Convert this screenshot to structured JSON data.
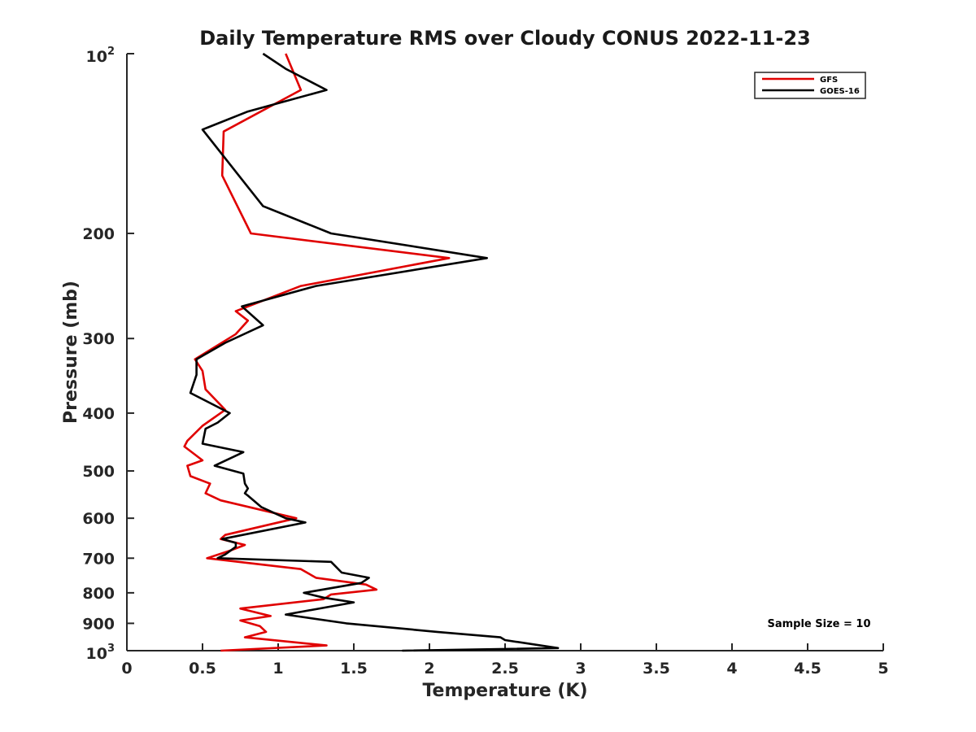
{
  "chart_data": {
    "type": "line",
    "title": "Daily Temperature RMS over Cloudy CONUS 2022-11-23",
    "xlabel": "Temperature (K)",
    "ylabel": "Pressure (mb)",
    "xlim": [
      0,
      5
    ],
    "ylim": [
      100,
      1000
    ],
    "y_scale": "log",
    "y_reversed": true,
    "x_ticks": [
      {
        "value": 0,
        "label": "0"
      },
      {
        "value": 0.5,
        "label": "0.5"
      },
      {
        "value": 1,
        "label": "1"
      },
      {
        "value": 1.5,
        "label": "1.5"
      },
      {
        "value": 2,
        "label": "2"
      },
      {
        "value": 2.5,
        "label": "2.5"
      },
      {
        "value": 3,
        "label": "3"
      },
      {
        "value": 3.5,
        "label": "3.5"
      },
      {
        "value": 4,
        "label": "4"
      },
      {
        "value": 4.5,
        "label": "4.5"
      },
      {
        "value": 5,
        "label": "5"
      }
    ],
    "y_ticks": [
      {
        "value": 200,
        "label": "200"
      },
      {
        "value": 300,
        "label": "300"
      },
      {
        "value": 400,
        "label": "400"
      },
      {
        "value": 500,
        "label": "500"
      },
      {
        "value": 600,
        "label": "600"
      },
      {
        "value": 700,
        "label": "700"
      },
      {
        "value": 800,
        "label": "800"
      },
      {
        "value": 900,
        "label": "900"
      }
    ],
    "y_power_ticks": [
      {
        "value": 100,
        "base": "10",
        "exp": "2"
      },
      {
        "value": 1000,
        "base": "10",
        "exp": "3"
      }
    ],
    "grid": false,
    "legend_position": "top-right",
    "annotation": "Sample Size = 10",
    "series": [
      {
        "name": "GFS",
        "color": "#e00000",
        "points": [
          [
            1.05,
            100
          ],
          [
            1.15,
            115
          ],
          [
            0.64,
            135
          ],
          [
            0.63,
            160
          ],
          [
            0.82,
            200
          ],
          [
            2.13,
            220
          ],
          [
            1.15,
            245
          ],
          [
            0.72,
            270
          ],
          [
            0.8,
            280
          ],
          [
            0.72,
            295
          ],
          [
            0.45,
            325
          ],
          [
            0.5,
            340
          ],
          [
            0.52,
            365
          ],
          [
            0.65,
            395
          ],
          [
            0.5,
            420
          ],
          [
            0.4,
            445
          ],
          [
            0.38,
            455
          ],
          [
            0.5,
            480
          ],
          [
            0.4,
            490
          ],
          [
            0.42,
            510
          ],
          [
            0.55,
            525
          ],
          [
            0.52,
            545
          ],
          [
            0.62,
            560
          ],
          [
            1.12,
            600
          ],
          [
            0.65,
            640
          ],
          [
            0.62,
            650
          ],
          [
            0.78,
            665
          ],
          [
            0.68,
            680
          ],
          [
            0.53,
            700
          ],
          [
            1.15,
            730
          ],
          [
            1.25,
            755
          ],
          [
            1.58,
            775
          ],
          [
            1.65,
            790
          ],
          [
            1.35,
            805
          ],
          [
            1.3,
            820
          ],
          [
            0.75,
            850
          ],
          [
            0.95,
            875
          ],
          [
            0.75,
            890
          ],
          [
            0.88,
            910
          ],
          [
            0.92,
            930
          ],
          [
            0.78,
            950
          ],
          [
            1.32,
            980
          ],
          [
            0.62,
            1000
          ]
        ]
      },
      {
        "name": "GOES-16",
        "color": "#000000",
        "points": [
          [
            0.9,
            100
          ],
          [
            1.05,
            106
          ],
          [
            1.32,
            115
          ],
          [
            0.8,
            125
          ],
          [
            0.5,
            134
          ],
          [
            0.74,
            160
          ],
          [
            0.9,
            180
          ],
          [
            1.35,
            200
          ],
          [
            2.38,
            220
          ],
          [
            1.25,
            245
          ],
          [
            0.76,
            265
          ],
          [
            0.9,
            285
          ],
          [
            0.65,
            305
          ],
          [
            0.46,
            325
          ],
          [
            0.46,
            345
          ],
          [
            0.42,
            370
          ],
          [
            0.68,
            400
          ],
          [
            0.6,
            415
          ],
          [
            0.52,
            425
          ],
          [
            0.5,
            450
          ],
          [
            0.77,
            465
          ],
          [
            0.58,
            490
          ],
          [
            0.77,
            505
          ],
          [
            0.78,
            525
          ],
          [
            0.8,
            535
          ],
          [
            0.78,
            545
          ],
          [
            0.8,
            550
          ],
          [
            0.89,
            575
          ],
          [
            1.05,
            600
          ],
          [
            1.18,
            610
          ],
          [
            0.63,
            650
          ],
          [
            0.72,
            660
          ],
          [
            0.72,
            670
          ],
          [
            0.65,
            690
          ],
          [
            0.6,
            700
          ],
          [
            1.35,
            710
          ],
          [
            1.42,
            740
          ],
          [
            1.6,
            755
          ],
          [
            1.55,
            770
          ],
          [
            1.17,
            800
          ],
          [
            1.3,
            815
          ],
          [
            1.5,
            830
          ],
          [
            1.05,
            870
          ],
          [
            1.45,
            900
          ],
          [
            2.05,
            930
          ],
          [
            2.47,
            950
          ],
          [
            2.5,
            960
          ],
          [
            2.85,
            990
          ],
          [
            1.82,
            1000
          ]
        ]
      }
    ]
  }
}
